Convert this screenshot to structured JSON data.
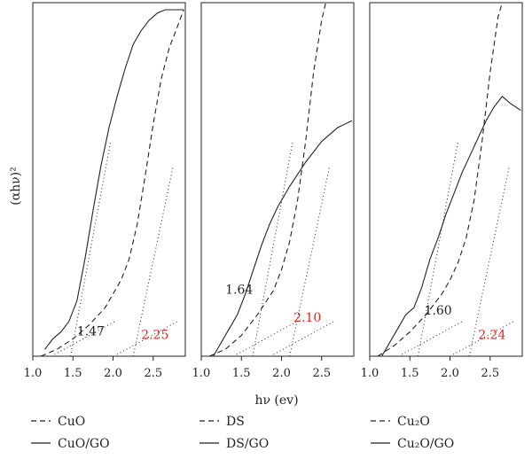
{
  "figure": {
    "ylabel": "(αhν)²",
    "xlabel": "hν (ev)"
  },
  "colors": {
    "ink": "#222222",
    "highlight": "#e8241f"
  },
  "chart_data": [
    {
      "type": "line",
      "panel": "left",
      "xlim": [
        1.0,
        2.9
      ],
      "xticks": [
        "1.0",
        "1.5",
        "2.0",
        "2.5"
      ],
      "grid": false,
      "series": [
        {
          "name": "CuO",
          "style": "dashed",
          "x": [
            1.1,
            1.3,
            1.5,
            1.7,
            1.9,
            2.0,
            2.1,
            2.2,
            2.3,
            2.4,
            2.5,
            2.6,
            2.7,
            2.8,
            2.88
          ],
          "y": [
            0.0,
            0.02,
            0.05,
            0.09,
            0.14,
            0.18,
            0.22,
            0.28,
            0.38,
            0.52,
            0.67,
            0.8,
            0.89,
            0.95,
            1.0
          ]
        },
        {
          "name": "CuO/GO",
          "style": "solid",
          "x": [
            1.15,
            1.25,
            1.35,
            1.45,
            1.55,
            1.65,
            1.75,
            1.85,
            1.95,
            2.05,
            2.15,
            2.25,
            2.35,
            2.45,
            2.55,
            2.65,
            2.75,
            2.88
          ],
          "y": [
            0.02,
            0.05,
            0.07,
            0.1,
            0.16,
            0.28,
            0.42,
            0.55,
            0.66,
            0.75,
            0.83,
            0.9,
            0.94,
            0.97,
            0.99,
            1.0,
            1.0,
            1.0
          ]
        }
      ],
      "annotations": [
        {
          "text": "1.47",
          "x": 1.55,
          "y": 0.06,
          "color": "ink"
        },
        {
          "text": "2.25",
          "x": 2.35,
          "y": 0.05,
          "color": "highlight"
        }
      ]
    },
    {
      "type": "line",
      "panel": "middle",
      "xlim": [
        1.0,
        2.9
      ],
      "xticks": [
        "1.0",
        "1.5",
        "2.0",
        "2.5"
      ],
      "grid": false,
      "series": [
        {
          "name": "DS",
          "style": "dashed",
          "x": [
            1.1,
            1.3,
            1.5,
            1.7,
            1.9,
            2.0,
            2.1,
            2.2,
            2.3,
            2.4,
            2.5,
            2.55
          ],
          "y": [
            0.0,
            0.02,
            0.06,
            0.12,
            0.19,
            0.25,
            0.33,
            0.45,
            0.62,
            0.82,
            0.97,
            1.02
          ]
        },
        {
          "name": "DS/GO",
          "style": "solid",
          "x": [
            1.15,
            1.25,
            1.35,
            1.45,
            1.55,
            1.65,
            1.75,
            1.85,
            1.95,
            2.1,
            2.3,
            2.5,
            2.7,
            2.88
          ],
          "y": [
            0.0,
            0.04,
            0.08,
            0.12,
            0.18,
            0.25,
            0.32,
            0.38,
            0.43,
            0.49,
            0.56,
            0.62,
            0.66,
            0.68
          ]
        }
      ],
      "annotations": [
        {
          "text": "1.64",
          "x": 1.3,
          "y": 0.18,
          "color": "ink"
        },
        {
          "text": "2.10",
          "x": 2.15,
          "y": 0.1,
          "color": "highlight"
        }
      ]
    },
    {
      "type": "line",
      "panel": "right",
      "xlim": [
        1.0,
        2.9
      ],
      "xticks": [
        "1.0",
        "1.5",
        "2.0",
        "2.5"
      ],
      "grid": false,
      "series": [
        {
          "name": "Cu₂O",
          "style": "dashed",
          "x": [
            1.1,
            1.3,
            1.5,
            1.7,
            1.9,
            2.0,
            2.1,
            2.2,
            2.3,
            2.4,
            2.5,
            2.6,
            2.65
          ],
          "y": [
            0.0,
            0.03,
            0.07,
            0.12,
            0.18,
            0.22,
            0.27,
            0.34,
            0.45,
            0.62,
            0.82,
            0.98,
            1.02
          ]
        },
        {
          "name": "Cu₂O/GO",
          "style": "solid",
          "x": [
            1.15,
            1.25,
            1.35,
            1.45,
            1.55,
            1.65,
            1.75,
            1.85,
            1.95,
            2.05,
            2.15,
            2.25,
            2.35,
            2.45,
            2.55,
            2.65,
            2.75,
            2.88
          ],
          "y": [
            0.0,
            0.04,
            0.08,
            0.12,
            0.14,
            0.2,
            0.28,
            0.34,
            0.41,
            0.47,
            0.53,
            0.58,
            0.63,
            0.68,
            0.72,
            0.75,
            0.73,
            0.71
          ]
        }
      ],
      "annotations": [
        {
          "text": "1.60",
          "x": 1.68,
          "y": 0.12,
          "color": "ink"
        },
        {
          "text": "2.24",
          "x": 2.35,
          "y": 0.05,
          "color": "highlight"
        }
      ]
    }
  ],
  "legend": {
    "left": [
      {
        "label": "CuO",
        "style": "dashed"
      },
      {
        "label": "CuO/GO",
        "style": "solid"
      }
    ],
    "middle": [
      {
        "label": "DS",
        "style": "dashed"
      },
      {
        "label": "DS/GO",
        "style": "solid"
      }
    ],
    "right": [
      {
        "label": "Cu₂O",
        "style": "dashed"
      },
      {
        "label": "Cu₂O/GO",
        "style": "solid"
      }
    ]
  }
}
